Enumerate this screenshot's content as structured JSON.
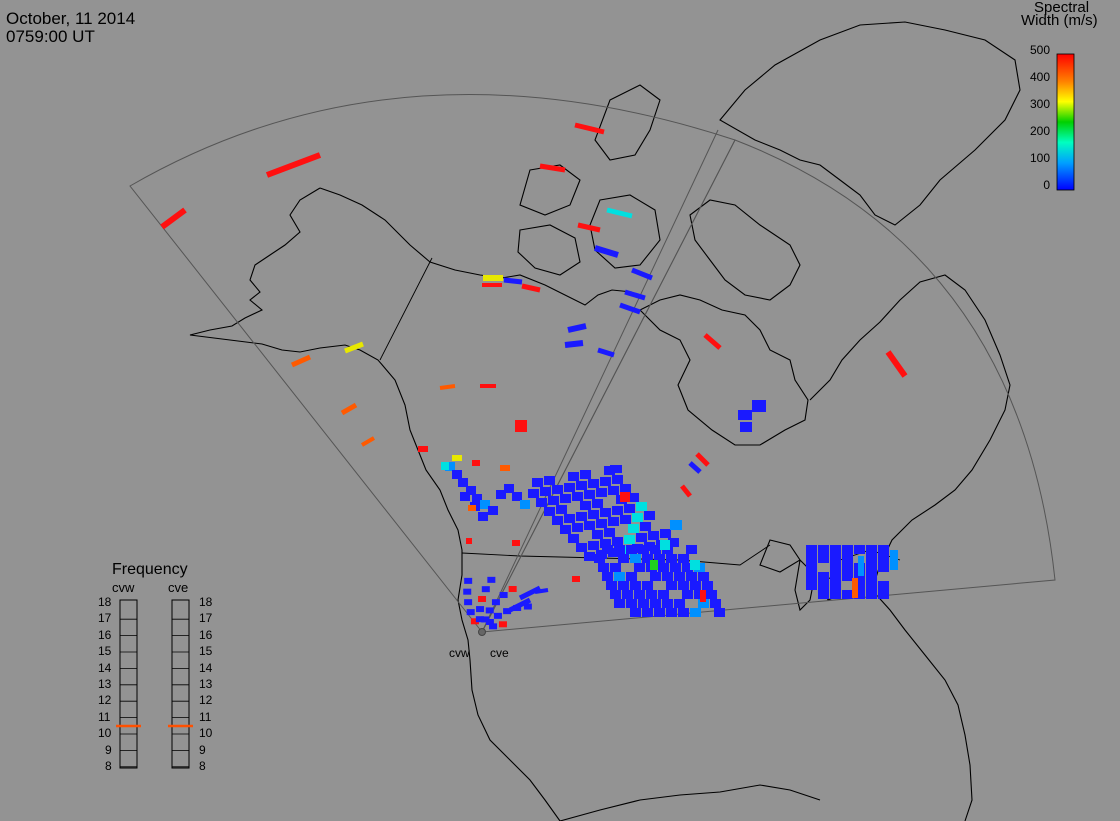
{
  "header": {
    "date": "October, 11 2014",
    "time": "0759:00 UT"
  },
  "colorbar": {
    "title_line1": "Spectral",
    "title_line2": "Width (m/s)",
    "ticks": [
      "500",
      "400",
      "300",
      "200",
      "100",
      "0"
    ]
  },
  "frequency_panel": {
    "title": "Frequency",
    "radars": [
      {
        "name": "cvw",
        "frequency_mhz": 10.6
      },
      {
        "name": "cve",
        "frequency_mhz": 10.6
      }
    ],
    "scale": [
      "18",
      "17",
      "16",
      "15",
      "14",
      "13",
      "12",
      "11",
      "10",
      "9",
      "8"
    ],
    "indicator_color": "#ff5000"
  },
  "radar_labels": [
    "cvw",
    "cve"
  ],
  "colors": {
    "background": "#939393",
    "land_outline": "#000000",
    "fov_outline": "#555555",
    "low_width": "#1a1aff",
    "high_width": "#ff1010"
  }
}
